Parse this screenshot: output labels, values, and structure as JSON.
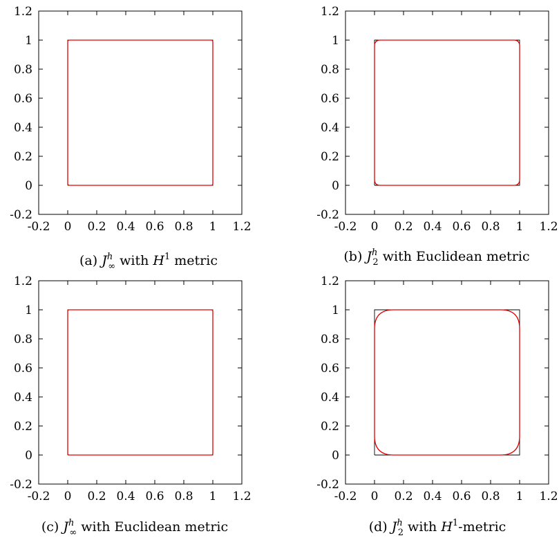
{
  "figure": {
    "captions": [
      {
        "prefix": "(a) ",
        "sym": "J",
        "sub": "∞",
        "sup": "h",
        "middle": " with ",
        "metric_sym": "H",
        "metric_sup": "1",
        "suffix": " metric"
      },
      {
        "prefix": "(b) ",
        "sym": "J",
        "sub": "2",
        "sup": "h",
        "middle": " with Euclidean metric",
        "metric_sym": "",
        "metric_sup": "",
        "suffix": ""
      },
      {
        "prefix": "(c) ",
        "sym": "J",
        "sub": "∞",
        "sup": "h",
        "middle": " with Euclidean metric",
        "metric_sym": "",
        "metric_sup": "",
        "suffix": ""
      },
      {
        "prefix": "(d) ",
        "sym": "J",
        "sub": "2",
        "sup": "h",
        "middle": " with ",
        "metric_sym": "H",
        "metric_sup": "1",
        "suffix": "-metric"
      }
    ]
  },
  "chart_data": [
    {
      "type": "line",
      "panel": "a",
      "xlim": [
        -0.2,
        1.2
      ],
      "ylim": [
        -0.2,
        1.2
      ],
      "xticks": [
        "-0.2",
        "0",
        "0.2",
        "0.4",
        "0.6",
        "0.8",
        "1",
        "1.2"
      ],
      "yticks": [
        "-0.2",
        "0",
        "0.2",
        "0.4",
        "0.6",
        "0.8",
        "1",
        "1.2"
      ],
      "grid": false,
      "colors": {
        "reference": "#000000",
        "curve": "#e00000"
      },
      "series": [
        {
          "role": "reference",
          "x": [
            0,
            1,
            1,
            0,
            0
          ],
          "y": [
            0,
            0,
            1,
            1,
            0
          ]
        },
        {
          "role": "curve",
          "corner_radius": 0.012
        }
      ]
    },
    {
      "type": "line",
      "panel": "b",
      "xlim": [
        -0.2,
        1.2
      ],
      "ylim": [
        -0.2,
        1.2
      ],
      "xticks": [
        "-0.2",
        "0",
        "0.2",
        "0.4",
        "0.6",
        "0.8",
        "1",
        "1.2"
      ],
      "yticks": [
        "-0.2",
        "0",
        "0.2",
        "0.4",
        "0.6",
        "0.8",
        "1",
        "1.2"
      ],
      "grid": false,
      "colors": {
        "reference": "#000000",
        "curve": "#e00000"
      },
      "series": [
        {
          "role": "reference",
          "x": [
            0,
            1,
            1,
            0,
            0
          ],
          "y": [
            0,
            0,
            1,
            1,
            0
          ]
        },
        {
          "role": "curve",
          "corner_radius": 0.04
        }
      ]
    },
    {
      "type": "line",
      "panel": "c",
      "xlim": [
        -0.2,
        1.2
      ],
      "ylim": [
        -0.2,
        1.2
      ],
      "xticks": [
        "-0.2",
        "0",
        "0.2",
        "0.4",
        "0.6",
        "0.8",
        "1",
        "1.2"
      ],
      "yticks": [
        "-0.2",
        "0",
        "0.2",
        "0.4",
        "0.6",
        "0.8",
        "1",
        "1.2"
      ],
      "grid": false,
      "colors": {
        "reference": "#000000",
        "curve": "#e00000"
      },
      "series": [
        {
          "role": "reference",
          "x": [
            0,
            1,
            1,
            0,
            0
          ],
          "y": [
            0,
            0,
            1,
            1,
            0
          ]
        },
        {
          "role": "curve",
          "corner_radius": 0.01
        }
      ]
    },
    {
      "type": "line",
      "panel": "d",
      "xlim": [
        -0.2,
        1.2
      ],
      "ylim": [
        -0.2,
        1.2
      ],
      "xticks": [
        "-0.2",
        "0",
        "0.2",
        "0.4",
        "0.6",
        "0.8",
        "1",
        "1.2"
      ],
      "yticks": [
        "-0.2",
        "0",
        "0.2",
        "0.4",
        "0.6",
        "0.8",
        "1",
        "1.2"
      ],
      "grid": false,
      "colors": {
        "reference": "#000000",
        "curve": "#e00000"
      },
      "series": [
        {
          "role": "reference",
          "x": [
            0,
            1,
            1,
            0,
            0
          ],
          "y": [
            0,
            0,
            1,
            1,
            0
          ]
        },
        {
          "role": "curve",
          "corner_radius": 0.13
        }
      ]
    }
  ]
}
